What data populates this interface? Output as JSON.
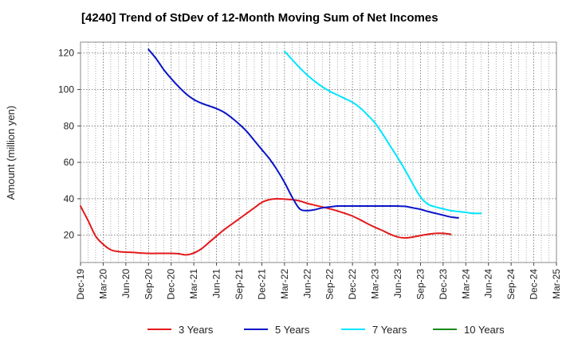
{
  "chart_data": {
    "type": "line",
    "title": "[4240]  Trend of StDev of 12-Month Moving Sum of Net Incomes",
    "xlabel": "",
    "ylabel": "Amount (million yen)",
    "x_tick_labels": [
      "Dec-19",
      "Mar-20",
      "Jun-20",
      "Sep-20",
      "Dec-20",
      "Mar-21",
      "Jun-21",
      "Sep-21",
      "Dec-21",
      "Mar-22",
      "Jun-22",
      "Sep-22",
      "Dec-22",
      "Mar-23",
      "Jun-23",
      "Sep-23",
      "Dec-23",
      "Mar-24",
      "Jun-24",
      "Sep-24",
      "Dec-24",
      "Mar-25"
    ],
    "yticks": [
      20,
      40,
      60,
      80,
      100,
      120
    ],
    "ylim": [
      5,
      126
    ],
    "grid": true,
    "legend_position": "bottom",
    "series": [
      {
        "name": "3 Years",
        "color": "#e31a1c",
        "values": [
          36,
          28,
          19.5,
          15,
          12,
          11,
          10.7,
          10.5,
          10.2,
          10,
          10,
          10,
          10,
          9.8,
          9.2,
          10.2,
          12.5,
          16,
          19.5,
          23,
          26,
          29,
          32,
          35,
          38,
          39.5,
          40,
          39.8,
          39.5,
          38.8,
          37.5,
          36.5,
          35.5,
          34.5,
          33.3,
          32,
          30.5,
          28.5,
          26.3,
          24.3,
          22.5,
          20.5,
          19,
          18.5,
          19,
          19.8,
          20.5,
          21,
          21,
          20.5
        ]
      },
      {
        "name": "5 Years",
        "color": "#0a14c8",
        "values": [
          null,
          null,
          null,
          null,
          null,
          null,
          null,
          null,
          122,
          117,
          111,
          106,
          101.5,
          97.5,
          94.5,
          92.5,
          91,
          89.5,
          87.5,
          84.5,
          81,
          77,
          72,
          67,
          62,
          56,
          49,
          41,
          34.5,
          33.5,
          34,
          35,
          35.5,
          36,
          36,
          36,
          36,
          36,
          36,
          36,
          36,
          36,
          35.8,
          35,
          34.2,
          33,
          32,
          31,
          30,
          29.5
        ],
        "offset": 1
      },
      {
        "name": "7 Years",
        "color": "#00e5ff",
        "values": [
          121,
          116.5,
          112,
          108,
          104.5,
          101.5,
          99,
          97,
          95,
          93,
          90,
          86,
          81.5,
          75.5,
          69,
          62.5,
          55.5,
          48,
          41,
          37,
          35.5,
          34.5,
          33.5,
          33,
          32.5,
          32,
          32
        ],
        "offset": 27
      },
      {
        "name": "10 Years",
        "color": "#1a8a1a",
        "values": []
      }
    ]
  }
}
